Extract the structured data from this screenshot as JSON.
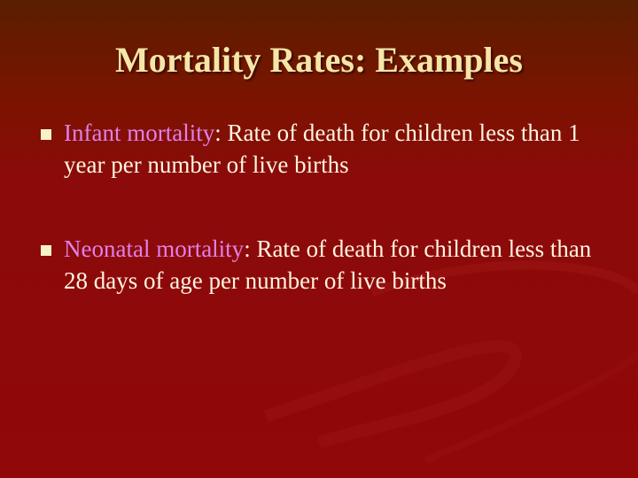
{
  "slide": {
    "title": "Mortality Rates: Examples",
    "bullets": [
      {
        "term": "Infant mortality",
        "text": ": Rate of death for children less than 1 year per number of live births"
      },
      {
        "term": "Neonatal mortality",
        "text": ": Rate of death for children less than 28 days of age per number of live births"
      }
    ]
  },
  "colors": {
    "title": "#f5e6a8",
    "term": "#e080e8",
    "body": "#fff4e0",
    "background": "#900808"
  }
}
